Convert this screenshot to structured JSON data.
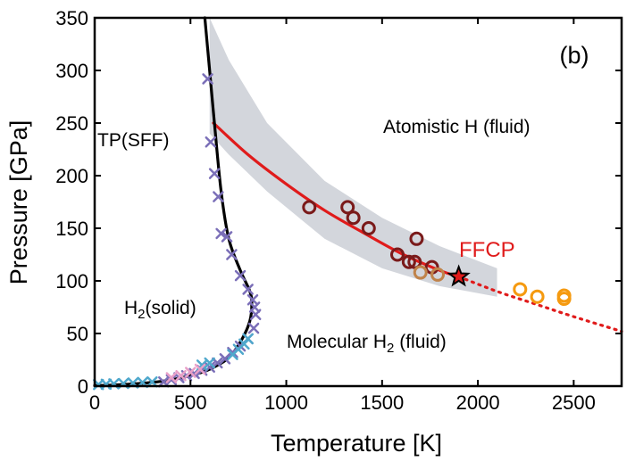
{
  "chart_data": {
    "type": "scatter",
    "panel_label": "(b)",
    "xlabel": "Temperature [K]",
    "ylabel": "Pressure [GPa]",
    "xlim": [
      0,
      2750
    ],
    "ylim": [
      0,
      350
    ],
    "xticks": [
      0,
      500,
      1000,
      1500,
      2000,
      2500
    ],
    "yticks": [
      0,
      50,
      100,
      150,
      200,
      250,
      300,
      350
    ],
    "grid": false,
    "annotations": {
      "tp_sff": "TP(SFF)",
      "atomistic": "Atomistic H (fluid)",
      "solid_prefix": "H",
      "solid_sub": "2",
      "solid_suffix": "(solid)",
      "molecular_prefix": "Molecular H",
      "molecular_sub": "2",
      "molecular_suffix": " (fluid)",
      "ffcp": "FFCP"
    },
    "colors": {
      "band": "#d3d6dc",
      "red_curve": "#e01b1b",
      "melting": "#000000",
      "purple_x": "#7b6fb8",
      "blue_x": "#4fa8cc",
      "pink_x": "#e8a0c8",
      "dark_circle": "#7a1a1a",
      "tan_circle": "#c0834a",
      "orange_circle": "#f59a10",
      "star_fill": "#e01b1b",
      "ffcp_text": "#e01b1b"
    },
    "series": [
      {
        "name": "uncertainty band",
        "kind": "band",
        "upper": [
          [
            600,
            350
          ],
          [
            700,
            310
          ],
          [
            900,
            250
          ],
          [
            1200,
            195
          ],
          [
            1500,
            160
          ],
          [
            1800,
            133
          ],
          [
            2100,
            112
          ]
        ],
        "lower": [
          [
            2100,
            85
          ],
          [
            1800,
            95
          ],
          [
            1500,
            112
          ],
          [
            1200,
            140
          ],
          [
            900,
            185
          ],
          [
            700,
            220
          ],
          [
            600,
            240
          ]
        ]
      },
      {
        "name": "transition line (solid)",
        "kind": "line",
        "style": "solid",
        "x": [
          620,
          800,
          1000,
          1200,
          1400,
          1600,
          1800,
          1900
        ],
        "y": [
          250,
          220,
          192,
          167,
          146,
          126,
          110,
          104
        ]
      },
      {
        "name": "transition line (extrapolated)",
        "kind": "line",
        "style": "dotted",
        "x": [
          1900,
          2100,
          2300,
          2500,
          2750
        ],
        "y": [
          104,
          90,
          78,
          66,
          52
        ]
      },
      {
        "name": "melting curve",
        "kind": "line",
        "style": "solid",
        "x": [
          0,
          100,
          200,
          300,
          400,
          500,
          600,
          700,
          770,
          810,
          820,
          810,
          760,
          700,
          660,
          625,
          595,
          575
        ],
        "y": [
          0.5,
          1,
          2,
          3.5,
          6,
          10,
          16,
          27,
          45,
          62,
          78,
          90,
          110,
          140,
          185,
          250,
          310,
          350
        ]
      },
      {
        "name": "purple crosses",
        "kind": "cross",
        "x": [
          590,
          605,
          625,
          645,
          660,
          690,
          715,
          760,
          800,
          825,
          835,
          840,
          830,
          800,
          760,
          720,
          680,
          640,
          600,
          560,
          520,
          480,
          440,
          400,
          360
        ],
        "y": [
          292,
          232,
          202,
          180,
          145,
          142,
          125,
          105,
          92,
          82,
          75,
          68,
          55,
          45,
          38,
          32,
          26,
          22,
          18,
          15,
          12,
          10,
          8,
          6,
          4
        ]
      },
      {
        "name": "blue crosses",
        "kind": "cross",
        "x": [
          20,
          60,
          100,
          150,
          200,
          250,
          300,
          800,
          780,
          750,
          720,
          600,
          560
        ],
        "y": [
          1.5,
          1.8,
          2.2,
          2.5,
          3.0,
          3.5,
          4.0,
          45,
          40,
          35,
          30,
          22,
          20
        ]
      },
      {
        "name": "pink crosses",
        "kind": "cross",
        "x": [
          400,
          450,
          500,
          550
        ],
        "y": [
          8,
          10,
          13,
          16
        ]
      },
      {
        "name": "dark red circles",
        "kind": "circle",
        "x": [
          1120,
          1320,
          1350,
          1430,
          1580,
          1640,
          1670,
          1680,
          1760
        ],
        "y": [
          170,
          170,
          160,
          150,
          125,
          118,
          118,
          140,
          113
        ]
      },
      {
        "name": "tan circles",
        "kind": "circle",
        "x": [
          1700,
          1790
        ],
        "y": [
          108,
          106
        ]
      },
      {
        "name": "orange circles",
        "kind": "circle",
        "x": [
          2220,
          2310,
          2450,
          2450
        ],
        "y": [
          92,
          85,
          86,
          83
        ]
      },
      {
        "name": "FFCP",
        "kind": "star",
        "x": [
          1900
        ],
        "y": [
          104
        ]
      }
    ]
  }
}
